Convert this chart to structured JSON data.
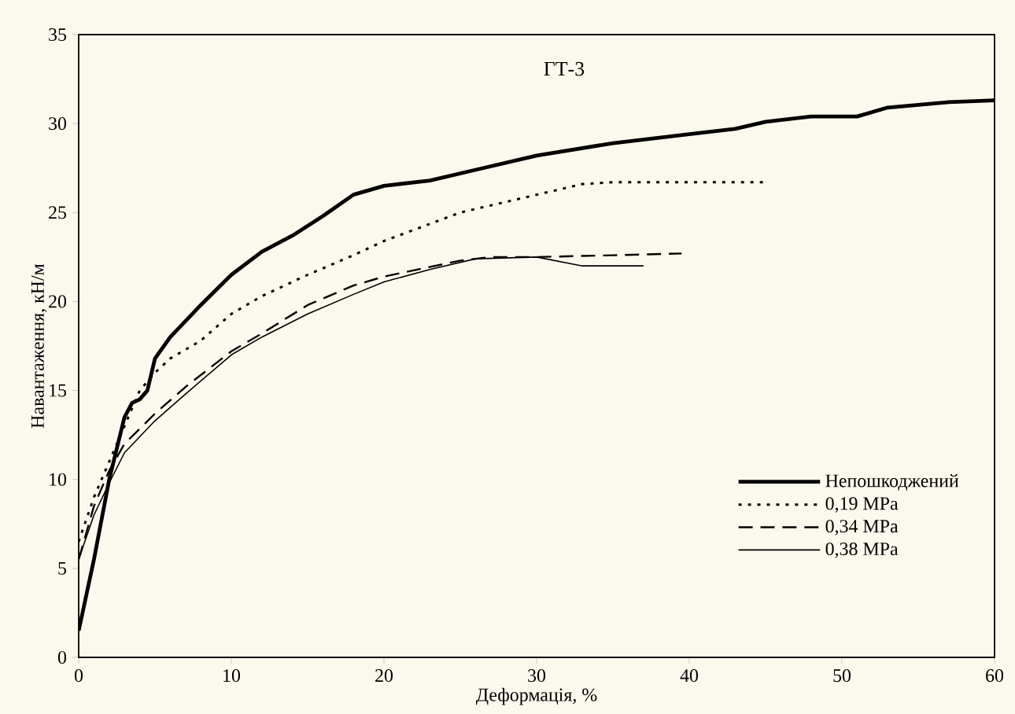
{
  "chart_data": {
    "type": "line",
    "xlabel": "Деформація, %",
    "ylabel": "Навантаження, кН/м",
    "annotations": [
      "ГТ-3"
    ],
    "xlim": [
      0,
      60
    ],
    "ylim": [
      0,
      35
    ],
    "xticks": [
      0,
      10,
      20,
      30,
      40,
      50,
      60
    ],
    "yticks": [
      0,
      5,
      10,
      15,
      20,
      25,
      30,
      35
    ],
    "grid": false,
    "legend": "bottom right",
    "marker": "none",
    "series": [
      {
        "name": "Непошкоджений",
        "color": "#000000",
        "line_style": "solid",
        "x": [
          0,
          1,
          2,
          3,
          3.5,
          4,
          4.5,
          5,
          6,
          8,
          10,
          12,
          14,
          16,
          18,
          20,
          23,
          26,
          30,
          35,
          40,
          43,
          45,
          48,
          51,
          53,
          57,
          60
        ],
        "values": [
          1.5,
          5.5,
          10,
          13.5,
          14.3,
          14.5,
          15,
          16.8,
          18,
          19.8,
          21.5,
          22.8,
          23.7,
          24.8,
          26,
          26.5,
          26.8,
          27.4,
          28.2,
          28.9,
          29.4,
          29.7,
          30.1,
          30.4,
          30.4,
          30.9,
          31.2,
          31.3
        ]
      },
      {
        "name": "0,19 MPa",
        "color": "#000000",
        "line_style": "dotted",
        "x": [
          0,
          1,
          2,
          3,
          4,
          5,
          6,
          8,
          10,
          12,
          15,
          18,
          20,
          25,
          30,
          33,
          35,
          40,
          45
        ],
        "values": [
          6.5,
          9,
          11,
          13,
          15,
          16,
          16.8,
          17.8,
          19.3,
          20.3,
          21.5,
          22.6,
          23.4,
          25,
          26,
          26.6,
          26.7,
          26.7,
          26.7
        ]
      },
      {
        "name": "0,34 MPa",
        "color": "#000000",
        "line_style": "dashed",
        "x": [
          0,
          1,
          2,
          3,
          5,
          7,
          10,
          12,
          15,
          18,
          20,
          25,
          27,
          30,
          35,
          39.5
        ],
        "values": [
          5.5,
          8.5,
          10.5,
          12,
          13.7,
          15.2,
          17.2,
          18.2,
          19.8,
          20.9,
          21.4,
          22.3,
          22.5,
          22.5,
          22.6,
          22.7
        ]
      },
      {
        "name": "0,38 MPa",
        "color": "#000000",
        "line_style": "solid",
        "x": [
          0,
          1,
          2,
          3,
          5,
          7,
          10,
          12,
          15,
          18,
          20,
          23,
          26,
          30,
          33,
          37
        ],
        "values": [
          5.5,
          8,
          9.8,
          11.5,
          13.3,
          14.8,
          17,
          18,
          19.3,
          20.4,
          21.1,
          21.8,
          22.4,
          22.5,
          22,
          22
        ]
      }
    ]
  }
}
